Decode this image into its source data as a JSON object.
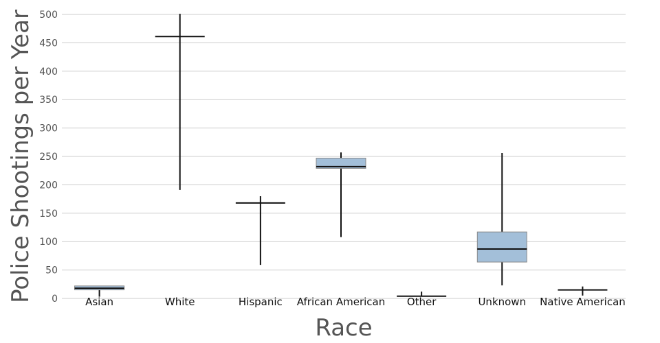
{
  "chart_data": {
    "type": "box",
    "xlabel": "Race",
    "ylabel": "Police Shootings per Year",
    "ylim": [
      0,
      500
    ],
    "yticks": [
      0,
      50,
      100,
      150,
      200,
      250,
      300,
      350,
      400,
      450,
      500
    ],
    "grid": true,
    "box_color": "#a3bfd9",
    "categories": [
      "Asian",
      "White",
      "Hispanic",
      "African American",
      "Other",
      "Unknown",
      "Native American"
    ],
    "boxes": [
      {
        "category": "Asian",
        "min": 3,
        "q1": 15,
        "median": 18,
        "q3": 22,
        "max": 22
      },
      {
        "category": "White",
        "min": 191,
        "q1": 461,
        "median": 461,
        "q3": 461,
        "max": 501
      },
      {
        "category": "Hispanic",
        "min": 59,
        "q1": 168,
        "median": 168,
        "q3": 168,
        "max": 180
      },
      {
        "category": "African American",
        "min": 108,
        "q1": 229,
        "median": 232,
        "q3": 247,
        "max": 257
      },
      {
        "category": "Other",
        "min": 4,
        "q1": 4,
        "median": 4,
        "q3": 4,
        "max": 12
      },
      {
        "category": "Unknown",
        "min": 23,
        "q1": 64,
        "median": 87,
        "q3": 117,
        "max": 256
      },
      {
        "category": "Native American",
        "min": 5,
        "q1": 15,
        "median": 15,
        "q3": 15,
        "max": 21
      }
    ]
  }
}
